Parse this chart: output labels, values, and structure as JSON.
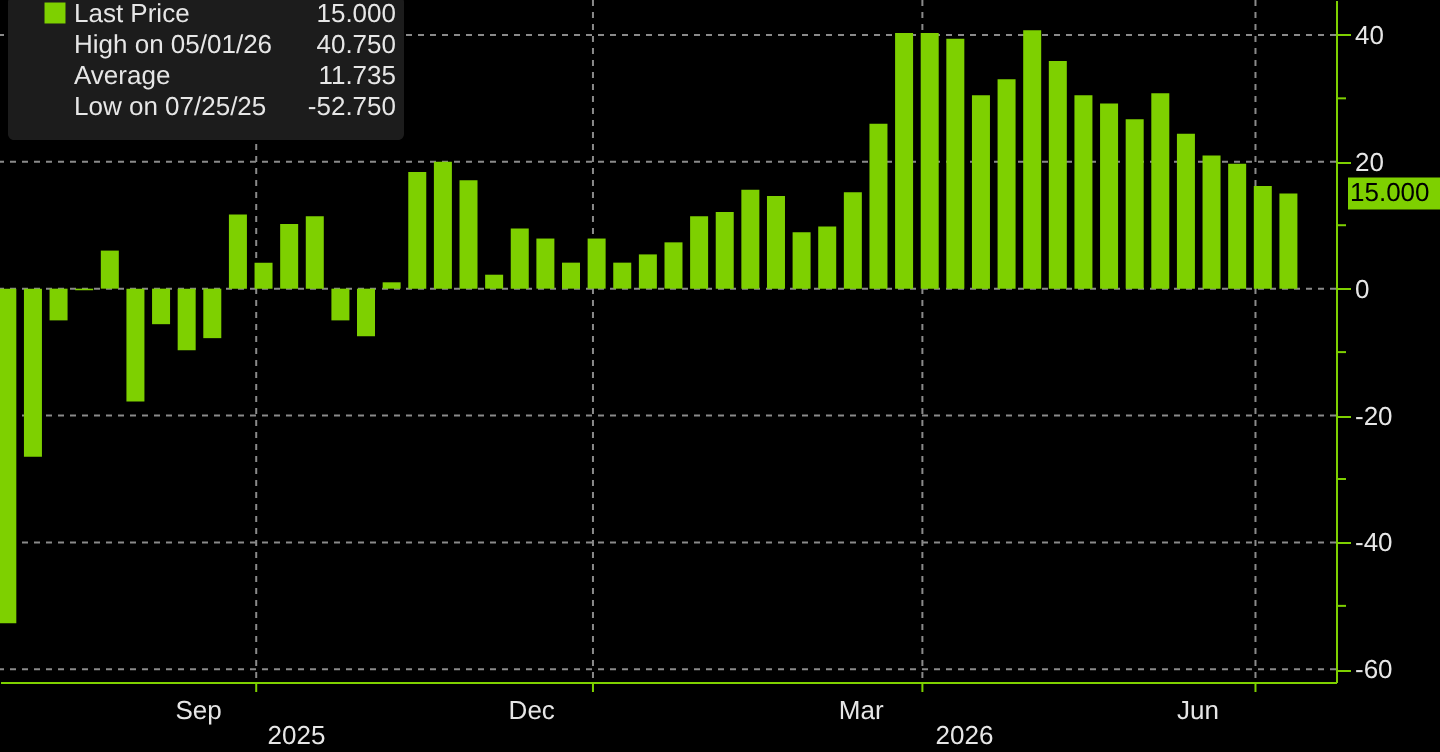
{
  "chart_data": {
    "type": "bar",
    "x": [
      "2025-07-25",
      "2025-08-01",
      "2025-08-08",
      "2025-08-15",
      "2025-08-22",
      "2025-08-29",
      "2025-09-05",
      "2025-09-12",
      "2025-09-19",
      "2025-09-26",
      "2025-10-03",
      "2025-10-10",
      "2025-10-17",
      "2025-10-24",
      "2025-10-31",
      "2025-11-07",
      "2025-11-14",
      "2025-11-21",
      "2025-11-28",
      "2025-12-05",
      "2025-12-12",
      "2025-12-19",
      "2025-12-26",
      "2026-01-02",
      "2026-01-09",
      "2026-01-16",
      "2026-01-23",
      "2026-01-30",
      "2026-02-06",
      "2026-02-13",
      "2026-02-20",
      "2026-02-27",
      "2026-03-06",
      "2026-03-13",
      "2026-03-20",
      "2026-03-27",
      "2026-04-03",
      "2026-04-10",
      "2026-04-17",
      "2026-04-24",
      "2026-05-01",
      "2026-05-08",
      "2026-05-15",
      "2026-05-22",
      "2026-05-29",
      "2026-06-05",
      "2026-06-12",
      "2026-06-19",
      "2026-06-26",
      "2026-07-03",
      "2026-07-10"
    ],
    "series": [
      {
        "name": "Last Price",
        "color": "#7ed000",
        "values": [
          -52.75,
          -26.5,
          -5.0,
          -0.25,
          6.0,
          -17.8,
          -5.6,
          -9.7,
          -7.8,
          11.7,
          4.1,
          10.2,
          11.4,
          -5.0,
          -7.5,
          1.0,
          18.4,
          20.0,
          17.1,
          2.2,
          9.5,
          7.9,
          4.1,
          7.9,
          4.1,
          5.4,
          7.3,
          11.4,
          12.1,
          15.6,
          14.6,
          8.9,
          9.8,
          15.2,
          26.0,
          40.3,
          40.3,
          39.4,
          30.5,
          33.0,
          40.75,
          35.9,
          30.5,
          29.2,
          26.7,
          30.8,
          24.4,
          21.0,
          19.7,
          16.2,
          15.0
        ]
      }
    ],
    "xlim": [
      "2025-07-23",
      "2026-07-23"
    ],
    "xticks": [
      {
        "value": "2025-09-15",
        "label": "Sep"
      },
      {
        "value": "2025-10-01",
        "label": null
      },
      {
        "value": "2025-12-15",
        "label": "Dec"
      },
      {
        "value": "2026-01-01",
        "label": null
      },
      {
        "value": "2026-03-15",
        "label": "Mar"
      },
      {
        "value": "2026-04-01",
        "label": null
      },
      {
        "value": "2026-06-15",
        "label": "Jun"
      },
      {
        "value": "2026-07-01",
        "label": null
      }
    ],
    "ylim": [
      -62,
      45.5
    ],
    "yticks": [
      -60,
      {
        "value": -50,
        "label": null
      },
      -40,
      {
        "value": -30,
        "label": null
      },
      -20,
      {
        "value": -10,
        "label": null
      },
      0,
      {
        "value": 10,
        "label": null
      },
      20,
      {
        "value": 30,
        "label": null
      },
      40
    ],
    "grid": true,
    "legend": "top left",
    "annotations": [
      "15.000",
      "High on 05/01/26 40.750",
      "Average 11.735",
      "Low on 07/25/25 -52.750",
      "2025",
      "2026"
    ]
  }
}
